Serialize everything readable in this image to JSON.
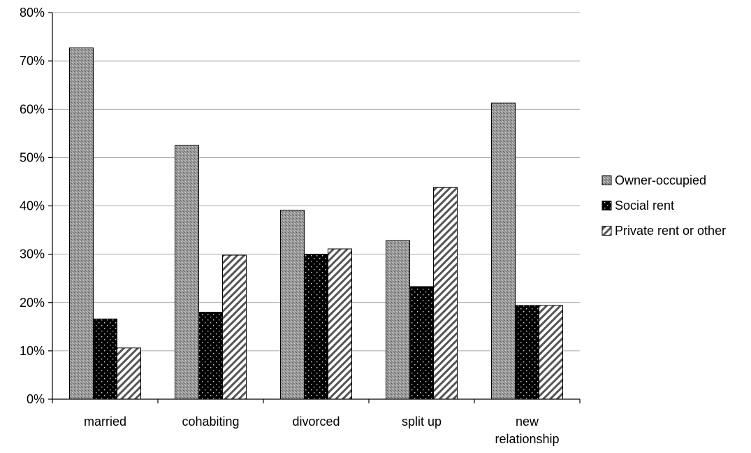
{
  "chart_data": {
    "type": "bar",
    "categories": [
      [
        "married"
      ],
      [
        "cohabiting"
      ],
      [
        "divorced"
      ],
      [
        "split up"
      ],
      [
        "new",
        "relationship"
      ]
    ],
    "series": [
      {
        "name": "Owner-occupied",
        "values": [
          72.7,
          52.5,
          39.1,
          32.8,
          61.3
        ],
        "pattern": "crosshatch"
      },
      {
        "name": "Social rent",
        "values": [
          16.6,
          18.0,
          30.0,
          23.3,
          19.4
        ],
        "pattern": "dots"
      },
      {
        "name": "Private rent or other",
        "values": [
          10.6,
          29.8,
          31.1,
          43.8,
          19.4
        ],
        "pattern": "diagonal"
      }
    ],
    "yticks": [
      "0%",
      "10%",
      "20%",
      "30%",
      "40%",
      "50%",
      "60%",
      "70%",
      "80%"
    ],
    "ylim": [
      0,
      80
    ],
    "ystep": 10,
    "grid": true,
    "legend_position": "right",
    "title": "",
    "xlabel": "",
    "ylabel": ""
  }
}
